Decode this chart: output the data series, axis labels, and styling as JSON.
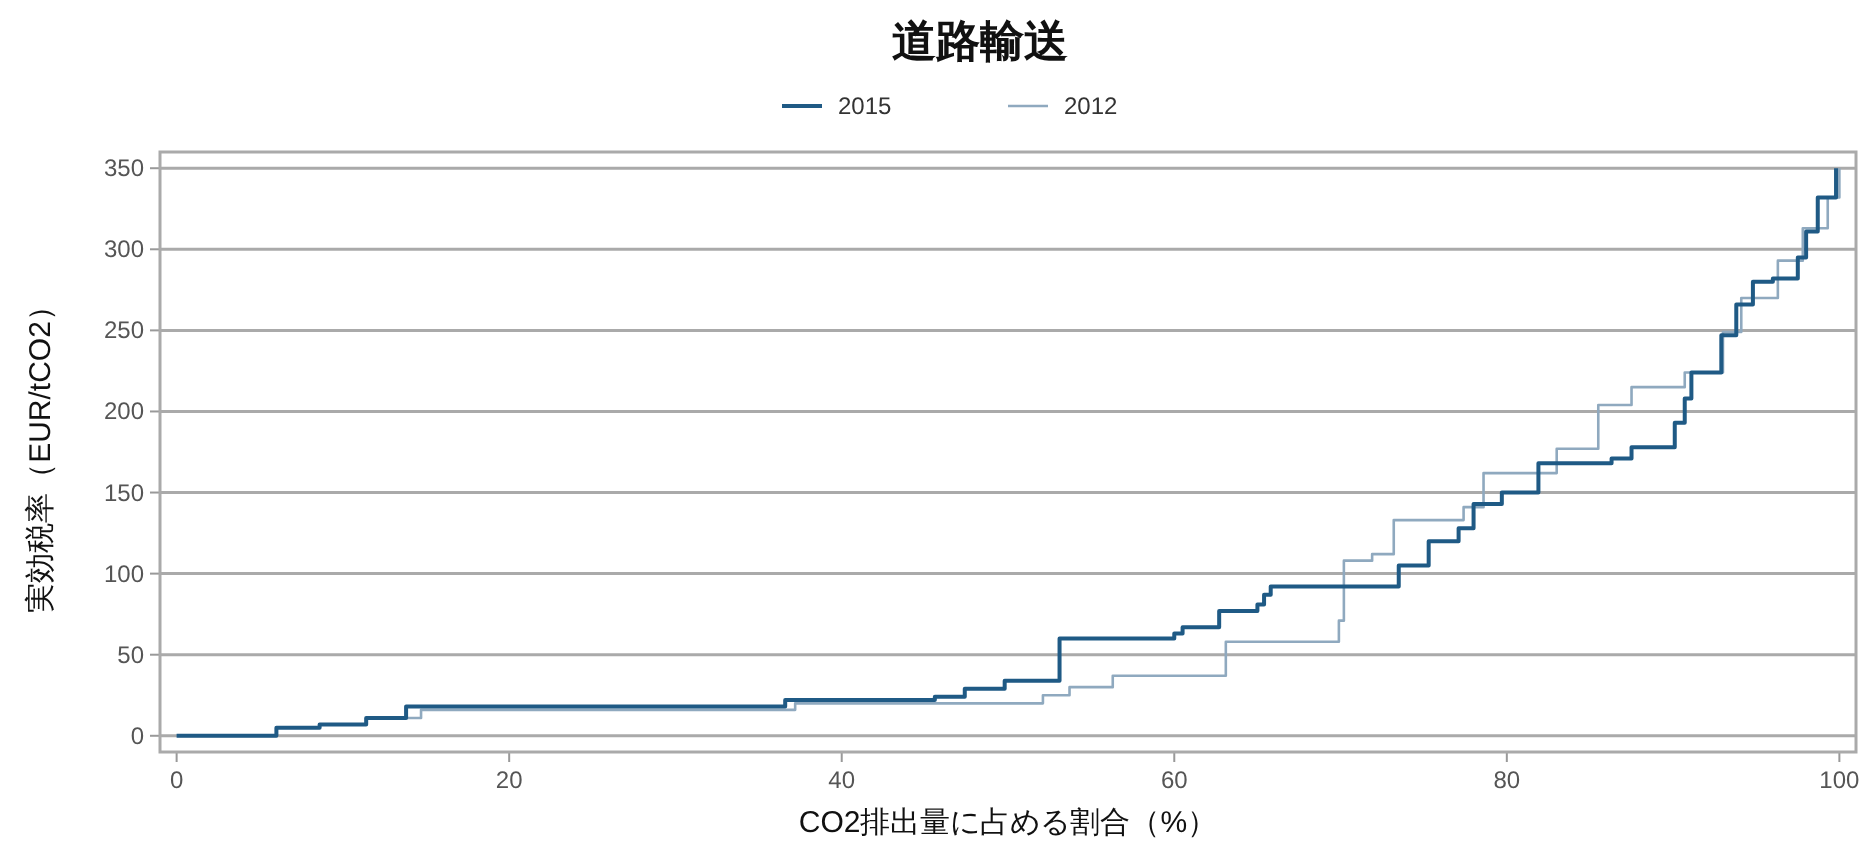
{
  "chart_data": {
    "type": "step",
    "title": "道路輸送",
    "xlabel": "CO2排出量に占める割合（%）",
    "ylabel": "実効税率（EUR/tCO2）",
    "xlim": [
      -1,
      101
    ],
    "ylim": [
      -10,
      360
    ],
    "xticks": [
      0,
      20,
      40,
      60,
      80,
      100
    ],
    "yticks": [
      0,
      50,
      100,
      150,
      200,
      250,
      300,
      350
    ],
    "grid": "y",
    "legend": "top",
    "line_style": "solid",
    "marker": "none",
    "series": [
      {
        "name": "2015",
        "color": "#1f5a85",
        "x": [
          0,
          6,
          8.6,
          11.4,
          13.8,
          36.6,
          45.6,
          47.4,
          49.8,
          53.1,
          60,
          60.5,
          62.7,
          65,
          65.4,
          65.8,
          73.5,
          75.3,
          77.1,
          78,
          79.7,
          81.9,
          86.3,
          87.5,
          90.1,
          90.7,
          91.1,
          92.9,
          93.8,
          94.8,
          96,
          97.5,
          98,
          98.7,
          99.8
        ],
        "values": [
          0,
          5,
          7,
          11,
          18,
          22,
          24,
          29,
          34,
          60,
          63,
          67,
          77,
          81,
          87,
          92,
          105,
          120,
          128,
          143,
          150,
          168,
          171,
          178,
          193,
          208,
          224,
          247,
          266,
          280,
          282,
          295,
          311,
          332,
          350
        ]
      },
      {
        "name": "2012",
        "color": "#8fa9bf",
        "x": [
          0,
          6,
          8.6,
          11.4,
          14.7,
          37.2,
          52.1,
          53.7,
          56.3,
          63.1,
          69.9,
          70.2,
          71.9,
          73.2,
          77.4,
          78.6,
          83,
          85.5,
          87.5,
          90.7,
          93,
          94.1,
          96.3,
          97.8,
          99.3,
          100
        ],
        "values": [
          0,
          5,
          7,
          11,
          16,
          20,
          25,
          30,
          37,
          58,
          71,
          108,
          112,
          133,
          141,
          162,
          177,
          204,
          215,
          224,
          249,
          270,
          293,
          313,
          332,
          350
        ]
      }
    ]
  }
}
